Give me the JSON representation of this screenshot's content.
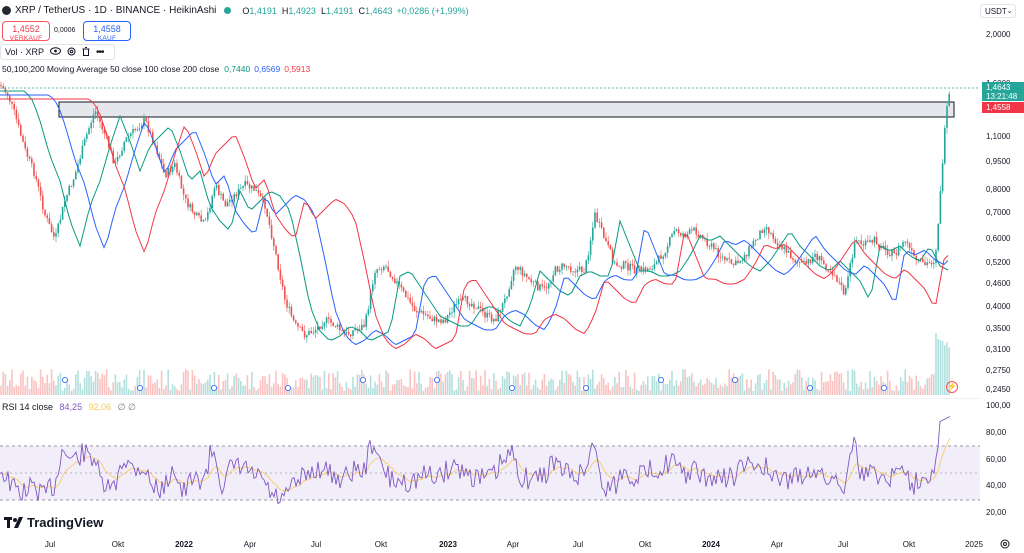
{
  "header": {
    "symbol": "XRP / TetherUS · 1D · BINANCE · HeikinAshi",
    "open_k": "O",
    "open_v": "1,4191",
    "high_k": "H",
    "high_v": "1,4923",
    "low_k": "L",
    "low_v": "1,4191",
    "close_k": "C",
    "close_v": "1,4643",
    "change": "+0,0286 (+1,99%)"
  },
  "trade": {
    "sell_price": "1,4552",
    "sell_label": "VERKAUF",
    "spread": "0,0006",
    "buy_price": "1,4558",
    "buy_label": "KAUF"
  },
  "vol_legend": {
    "label": "Vol · XRP"
  },
  "ma_legend": {
    "label": "50,100,200 Moving Average 50 close 100 close 200 close",
    "v1": "0,7440",
    "v2": "0,6569",
    "v3": "0,5913",
    "c1": "#089981",
    "c2": "#2962ff",
    "c3": "#f23645"
  },
  "currency": "USDT",
  "price_axis": [
    "2,0000",
    "1,6000",
    "1,1000",
    "0,9500",
    "0,8000",
    "0,7000",
    "0,6000",
    "0,5200",
    "0,4600",
    "0,4000",
    "0,3500",
    "0,3100",
    "0,2750",
    "0,2450"
  ],
  "price_tag_close": "1,4643",
  "price_tag_timer": "13:21:48",
  "price_tag_bid": "1,4558",
  "rsi_legend": {
    "label": "RSI 14 close",
    "v1": "84,25",
    "v2": "92,06"
  },
  "rsi_axis": [
    "100,00",
    "80,00",
    "60,00",
    "40,00",
    "20,00"
  ],
  "time_axis": [
    {
      "label": "Jul",
      "bold": false
    },
    {
      "label": "Okt",
      "bold": false
    },
    {
      "label": "2022",
      "bold": true
    },
    {
      "label": "Apr",
      "bold": false
    },
    {
      "label": "Jul",
      "bold": false
    },
    {
      "label": "Okt",
      "bold": false
    },
    {
      "label": "2023",
      "bold": true
    },
    {
      "label": "Apr",
      "bold": false
    },
    {
      "label": "Jul",
      "bold": false
    },
    {
      "label": "Okt",
      "bold": false
    },
    {
      "label": "2024",
      "bold": true
    },
    {
      "label": "Apr",
      "bold": false
    },
    {
      "label": "Jul",
      "bold": false
    },
    {
      "label": "Okt",
      "bold": false
    },
    {
      "label": "2025",
      "bold": false
    }
  ],
  "brand": "TradingView",
  "colors": {
    "up": "#26a69a",
    "down": "#ef5350",
    "rsi": "#7e57c2",
    "rsi_ma": "#f7c955"
  }
}
